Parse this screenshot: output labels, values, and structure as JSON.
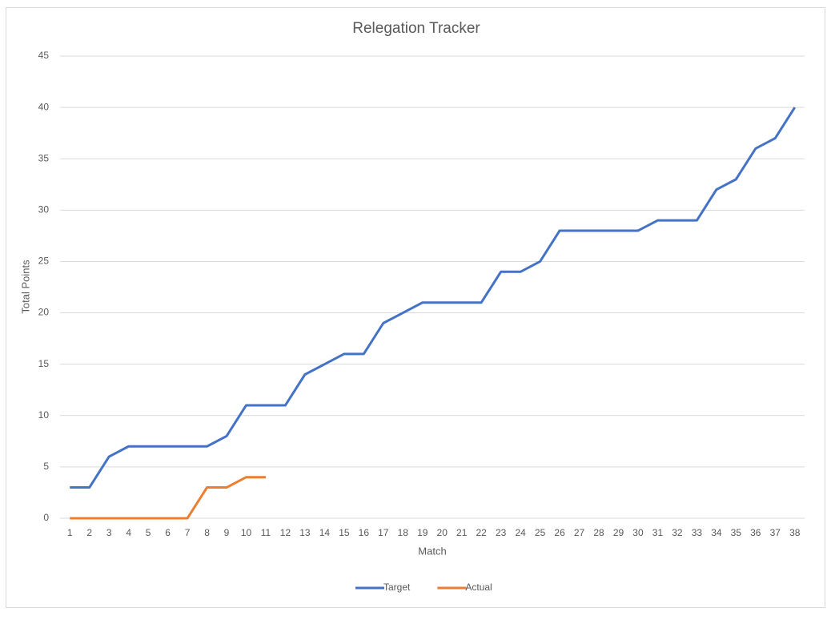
{
  "chart_data": {
    "type": "line",
    "title": "Relegation Tracker",
    "x_label": "Match",
    "y_label": "Total Points",
    "categories": [
      1,
      2,
      3,
      4,
      5,
      6,
      7,
      8,
      9,
      10,
      11,
      12,
      13,
      14,
      15,
      16,
      17,
      18,
      19,
      20,
      21,
      22,
      23,
      24,
      25,
      26,
      27,
      28,
      29,
      30,
      31,
      32,
      33,
      34,
      35,
      36,
      37,
      38
    ],
    "series": [
      {
        "name": "Target",
        "color": "#4472c4",
        "values": [
          3,
          3,
          6,
          7,
          7,
          7,
          7,
          7,
          8,
          11,
          11,
          11,
          14,
          15,
          16,
          16,
          19,
          20,
          21,
          21,
          21,
          21,
          24,
          24,
          25,
          28,
          28,
          28,
          28,
          28,
          29,
          29,
          29,
          32,
          33,
          36,
          37,
          40
        ]
      },
      {
        "name": "Actual",
        "color": "#ed7d31",
        "values": [
          0,
          0,
          0,
          0,
          0,
          0,
          0,
          3,
          3,
          4,
          4,
          null,
          null,
          null,
          null,
          null,
          null,
          null,
          null,
          null,
          null,
          null,
          null,
          null,
          null,
          null,
          null,
          null,
          null,
          null,
          null,
          null,
          null,
          null,
          null,
          null,
          null,
          null
        ]
      }
    ],
    "ylim": [
      0,
      45
    ],
    "yticks": [
      0,
      5,
      10,
      15,
      20,
      25,
      30,
      35,
      40,
      45
    ],
    "grid": true,
    "legend": "bottom"
  }
}
